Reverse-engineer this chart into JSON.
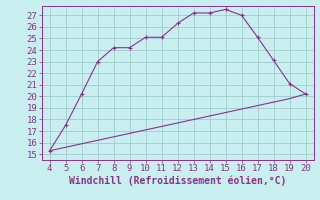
{
  "xlabel": "Windchill (Refroidissement éolien,°C)",
  "bg_color": "#c8eef0",
  "grid_color": "#a0cccc",
  "line_color": "#883388",
  "x_upper": [
    4,
    5,
    6,
    7,
    8,
    9,
    10,
    11,
    12,
    13,
    14,
    15,
    16,
    17,
    18,
    19,
    20
  ],
  "y_upper": [
    15.3,
    17.5,
    20.2,
    23.0,
    24.2,
    24.2,
    25.1,
    25.1,
    26.3,
    27.2,
    27.2,
    27.5,
    27.0,
    25.1,
    23.1,
    21.1,
    20.2
  ],
  "x_lower": [
    4,
    5,
    6,
    7,
    8,
    9,
    10,
    11,
    12,
    13,
    14,
    15,
    16,
    17,
    18,
    19,
    20
  ],
  "y_lower": [
    15.3,
    15.6,
    15.9,
    16.2,
    16.5,
    16.8,
    17.1,
    17.4,
    17.7,
    18.0,
    18.3,
    18.6,
    18.9,
    19.2,
    19.5,
    19.8,
    20.2
  ],
  "xlim": [
    3.5,
    20.5
  ],
  "ylim": [
    14.5,
    27.8
  ],
  "xticks": [
    4,
    5,
    6,
    7,
    8,
    9,
    10,
    11,
    12,
    13,
    14,
    15,
    16,
    17,
    18,
    19,
    20
  ],
  "yticks": [
    15,
    16,
    17,
    18,
    19,
    20,
    21,
    22,
    23,
    24,
    25,
    26,
    27
  ],
  "tick_fontsize": 6.5,
  "xlabel_fontsize": 7.0
}
